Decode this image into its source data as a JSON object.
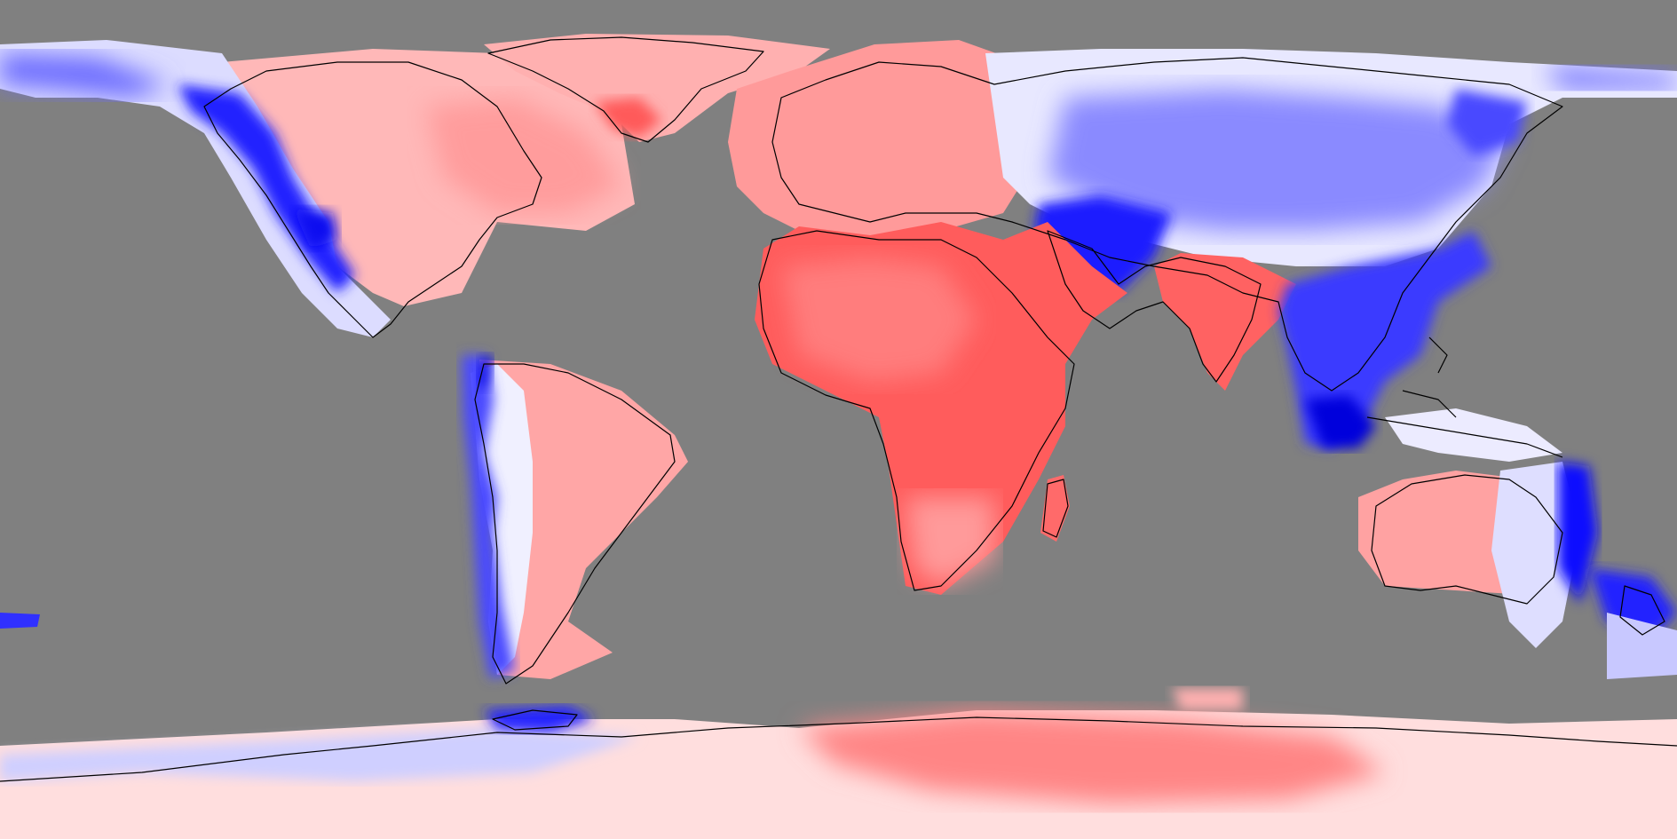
{
  "map": {
    "projection": "equirectangular",
    "extent": {
      "lon": [
        -180,
        180
      ],
      "lat": [
        -90,
        90
      ]
    },
    "colors": {
      "background": "#808080",
      "positive_strong": "#ff4d4d",
      "positive_mid": "#ff8a8a",
      "positive_weak": "#ffc8c8",
      "neutral": "#f4f4ff",
      "negative_weak": "#c8c8ff",
      "negative_mid": "#7a7aff",
      "negative_strong": "#0000e6",
      "coastline": "#000000"
    },
    "legend": "none",
    "title": ""
  }
}
